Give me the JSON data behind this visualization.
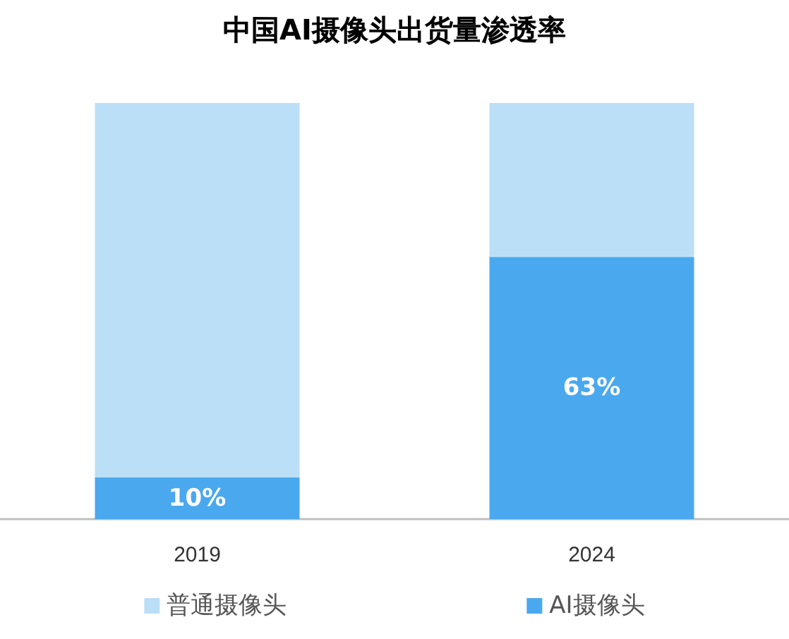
{
  "chart_data": {
    "type": "bar",
    "title": "中国AI摄像头出货量渗透率",
    "categories": [
      "2019",
      "2024"
    ],
    "stacked": true,
    "ylim": [
      0,
      100
    ],
    "tick_labels": "x",
    "grid": false,
    "legend": "bottom",
    "series": [
      {
        "name": "AI摄像头",
        "color": "#4aa8ef",
        "values": [
          10,
          63
        ],
        "value_labels": [
          "10%",
          "63%"
        ]
      },
      {
        "name": "普通摄像头",
        "color": "#bcdff8",
        "values": [
          90,
          37
        ]
      }
    ]
  }
}
